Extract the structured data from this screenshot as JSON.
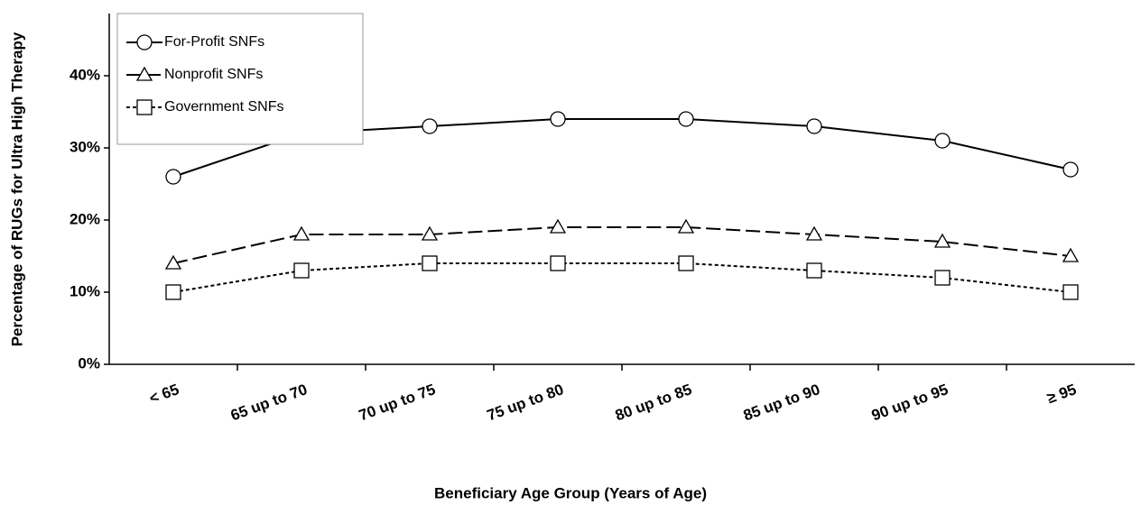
{
  "chart_data": {
    "type": "line",
    "y_label": "Percentage of RUGs for Ultra High Therapy",
    "x_label": "Beneficiary Age Group (Years of Age)",
    "categories": [
      "< 65",
      "65 up to 70",
      "70 up to 75",
      "75 up to 80",
      "80 up to 85",
      "85 up to 90",
      "90 up to 95",
      "≥ 95"
    ],
    "series": [
      {
        "name": "For-Profit SNFs",
        "color": "#000000",
        "line_style": "solid",
        "marker": "circle",
        "values": [
          26,
          32,
          33,
          34,
          34,
          33,
          31,
          27
        ]
      },
      {
        "name": "Nonprofit SNFs",
        "color": "#000000",
        "line_style": "dashed",
        "marker": "triangle",
        "values": [
          14,
          18,
          18,
          19,
          19,
          18,
          17,
          15
        ]
      },
      {
        "name": "Government SNFs",
        "color": "#000000",
        "line_style": "dotted",
        "marker": "square",
        "values": [
          10,
          13,
          14,
          14,
          14,
          13,
          12,
          10
        ]
      }
    ],
    "ylim": [
      0,
      40
    ],
    "yticks": [
      {
        "value": 0,
        "label": "0%"
      },
      {
        "value": 10,
        "label": "10%"
      },
      {
        "value": 20,
        "label": "20%"
      },
      {
        "value": 30,
        "label": "30%"
      },
      {
        "value": 40,
        "label": "40%"
      }
    ],
    "grid": false,
    "legend": "upper left"
  }
}
